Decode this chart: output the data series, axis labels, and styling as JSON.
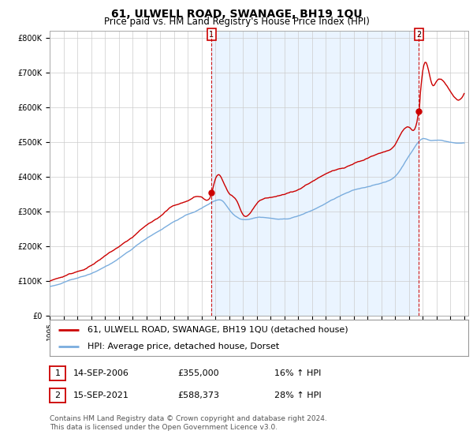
{
  "title": "61, ULWELL ROAD, SWANAGE, BH19 1QU",
  "subtitle": "Price paid vs. HM Land Registry's House Price Index (HPI)",
  "ylabel_ticks": [
    "£0",
    "£100K",
    "£200K",
    "£300K",
    "£400K",
    "£500K",
    "£600K",
    "£700K",
    "£800K"
  ],
  "ytick_values": [
    0,
    100000,
    200000,
    300000,
    400000,
    500000,
    600000,
    700000,
    800000
  ],
  "ylim": [
    0,
    820000
  ],
  "xlim_start": 1995.0,
  "xlim_end": 2025.3,
  "sale1_year": 2006.71,
  "sale1_price": 355000,
  "sale2_year": 2021.71,
  "sale2_price": 588373,
  "legend_label_red": "61, ULWELL ROAD, SWANAGE, BH19 1QU (detached house)",
  "legend_label_blue": "HPI: Average price, detached house, Dorset",
  "annotation1_date": "14-SEP-2006",
  "annotation1_price": "£355,000",
  "annotation1_hpi": "16% ↑ HPI",
  "annotation2_date": "15-SEP-2021",
  "annotation2_price": "£588,373",
  "annotation2_hpi": "28% ↑ HPI",
  "footer": "Contains HM Land Registry data © Crown copyright and database right 2024.\nThis data is licensed under the Open Government Licence v3.0.",
  "red_color": "#cc0000",
  "blue_color": "#7aadde",
  "shade_color": "#ddeeff",
  "dashed_color": "#cc0000",
  "bg_color": "#ffffff",
  "grid_color": "#cccccc",
  "title_fontsize": 10,
  "subtitle_fontsize": 8.5,
  "tick_fontsize": 7,
  "legend_fontsize": 8,
  "annotation_fontsize": 8,
  "footer_fontsize": 6.5
}
